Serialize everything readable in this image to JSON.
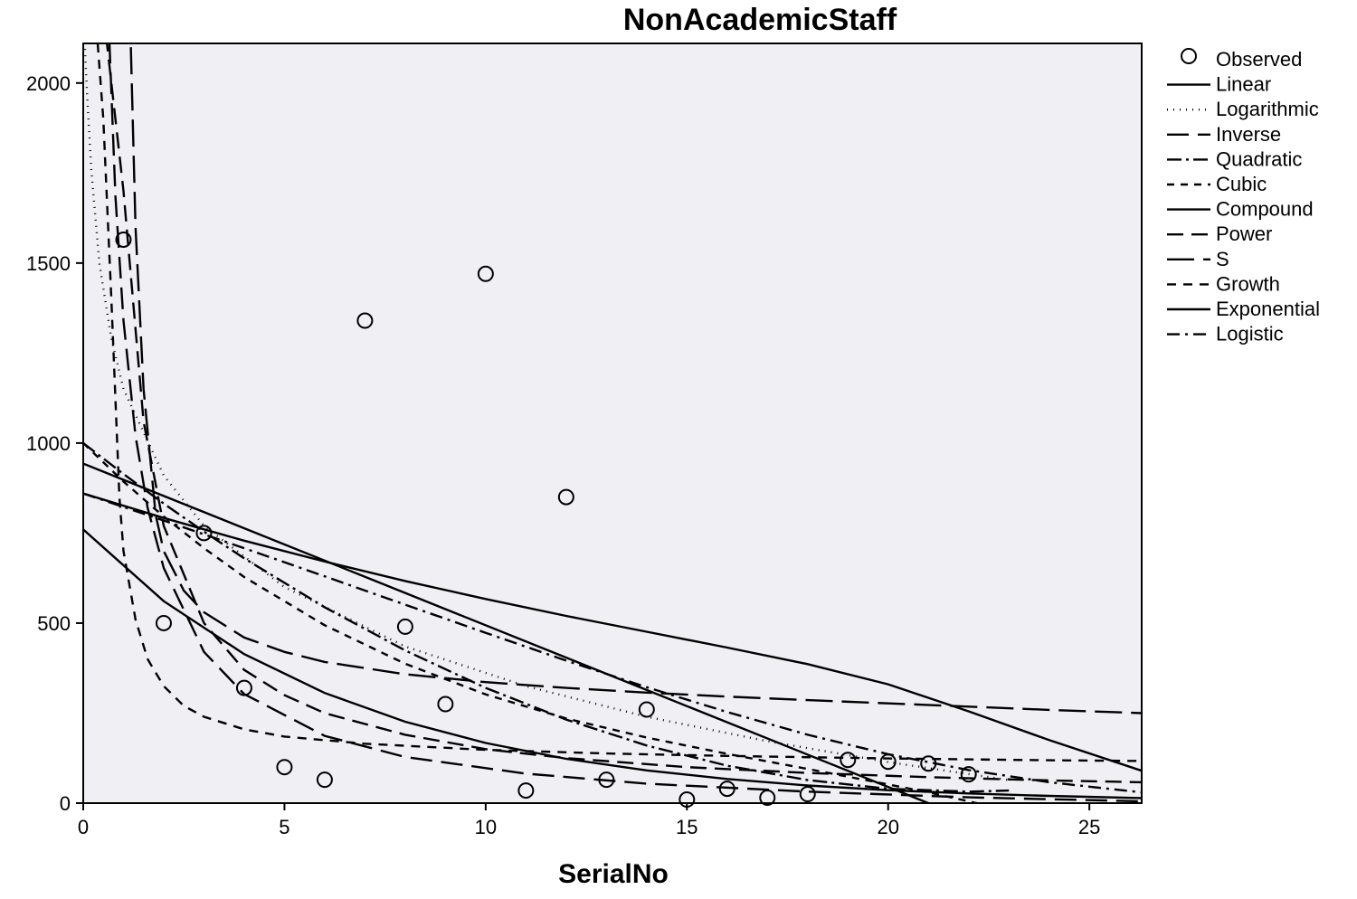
{
  "chart_data": {
    "type": "scatter",
    "title": "NonAcademicStaff",
    "xlabel": "SerialNo",
    "ylabel": "",
    "xlim": [
      0,
      26.3
    ],
    "ylim": [
      0,
      2110
    ],
    "xticks": [
      0,
      5,
      10,
      15,
      20,
      25
    ],
    "yticks": [
      0,
      500,
      1000,
      1500,
      2000
    ],
    "grid": false,
    "legend_position": "right",
    "background": "#f0f0f4",
    "observed": {
      "name": "Observed",
      "x": [
        1,
        2,
        3,
        4,
        5,
        6,
        7,
        8,
        9,
        10,
        11,
        12,
        13,
        14,
        15,
        16,
        17,
        18,
        19,
        20,
        21,
        22
      ],
      "y": [
        1565,
        500,
        750,
        320,
        100,
        65,
        1340,
        490,
        275,
        1470,
        35,
        850,
        65,
        260,
        10,
        40,
        15,
        25,
        120,
        115,
        110,
        80
      ]
    },
    "fits": [
      {
        "name": "Linear",
        "dash": "",
        "x": [
          0,
          21
        ],
        "y": [
          943,
          0
        ]
      },
      {
        "name": "Logarithmic",
        "dash": "1,6",
        "x": [
          0.02,
          0.05,
          0.1,
          0.2,
          0.4,
          0.7,
          1,
          2,
          3,
          5,
          8,
          11,
          14,
          17,
          20,
          23
        ],
        "y": [
          2200,
          2080,
          1960,
          1760,
          1500,
          1290,
          1150,
          910,
          770,
          600,
          435,
          325,
          240,
          172,
          114,
          64
        ]
      },
      {
        "name": "Inverse",
        "dash": "24,10",
        "x": [
          0.62,
          0.8,
          1,
          1.3,
          1.6,
          2,
          3,
          4,
          6,
          8,
          11,
          14,
          18,
          22,
          26.3
        ],
        "y": [
          2200,
          1685,
          1340,
          1020,
          820,
          653,
          420,
          303,
          187,
          128,
          82,
          54,
          32,
          16,
          5
        ]
      },
      {
        "name": "Quadratic",
        "dash": "16,5,3,5",
        "x": [
          0,
          1,
          2,
          3,
          4,
          6,
          8,
          10,
          12,
          14,
          16,
          18,
          20,
          22,
          23
        ],
        "y": [
          1000,
          914,
          832,
          754,
          680,
          544,
          424,
          320,
          232,
          160,
          104,
          64,
          40,
          32,
          35
        ]
      },
      {
        "name": "Cubic",
        "dash": "8,7",
        "x": [
          0,
          1,
          2,
          3,
          4,
          6,
          8,
          10,
          12,
          14,
          16,
          18,
          20,
          21,
          22,
          23
        ],
        "y": [
          1000,
          893,
          796,
          708,
          628,
          494,
          387,
          302,
          235,
          182,
          137,
          95,
          52,
          30,
          5,
          -20
        ]
      },
      {
        "name": "Compound",
        "dash": "",
        "x": [
          0,
          2,
          4,
          6,
          8,
          10,
          12,
          14,
          16,
          18,
          20,
          22,
          24,
          26.3
        ],
        "y": [
          760,
          561,
          414,
          306,
          226,
          167,
          123,
          91,
          67,
          49,
          36,
          27,
          20,
          14
        ]
      },
      {
        "name": "Power",
        "dash": "18,9",
        "x": [
          0.5,
          1,
          1.5,
          2,
          3,
          4,
          5,
          6,
          8,
          10,
          12,
          15,
          18,
          21,
          24,
          26.3
        ],
        "y": [
          2200,
          1700,
          1060,
          770,
          500,
          370,
          300,
          250,
          190,
          150,
          125,
          100,
          84,
          72,
          63,
          58
        ]
      },
      {
        "name": "S",
        "dash": "30,10",
        "x": [
          1.16,
          1.3,
          1.5,
          1.8,
          2,
          2.5,
          3,
          4,
          5,
          6,
          8,
          10,
          12,
          14,
          16,
          18,
          20,
          22,
          24,
          26.3
        ],
        "y": [
          2200,
          1600,
          1150,
          800,
          700,
          590,
          530,
          460,
          420,
          392,
          358,
          336,
          320,
          307,
          296,
          286,
          277,
          268,
          259,
          250
        ]
      },
      {
        "name": "Growth",
        "dash": "10,8",
        "x": [
          0.3,
          0.5,
          0.7,
          0.9,
          1,
          1.3,
          1.6,
          2,
          2.5,
          3,
          4,
          5,
          7,
          10,
          13,
          16,
          20,
          24,
          26.3
        ],
        "y": [
          2200,
          1900,
          1400,
          850,
          700,
          510,
          400,
          325,
          270,
          240,
          205,
          185,
          165,
          148,
          138,
          131,
          124,
          119,
          117
        ]
      },
      {
        "name": "Exponential",
        "dash": "",
        "x": [
          0,
          2,
          4,
          6,
          8,
          10,
          12,
          14,
          16,
          18,
          20,
          22,
          24,
          26.3
        ],
        "y": [
          860,
          792,
          729,
          671,
          617,
          567,
          520,
          476,
          432,
          386,
          330,
          255,
          175,
          90
        ]
      },
      {
        "name": "Logistic",
        "dash": "14,6,3,6",
        "x": [
          0,
          2,
          4,
          6,
          8,
          10,
          12,
          14,
          16,
          18,
          20,
          22,
          24,
          26.3
        ],
        "y": [
          860,
          785,
          708,
          630,
          551,
          473,
          396,
          322,
          253,
          190,
          136,
          92,
          58,
          30
        ]
      }
    ]
  }
}
